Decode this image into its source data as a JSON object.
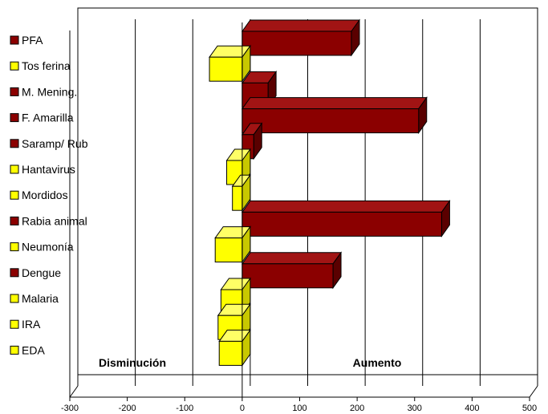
{
  "chart_data": {
    "type": "bar",
    "orientation": "horizontal",
    "style": "3d",
    "categories": [
      "PFA",
      "Tos ferina",
      "M. Mening.",
      "F. Amarilla",
      "Saramp/ Rub",
      "Hantavirus",
      "Mordidos",
      "Rabia animal",
      "Neumonía",
      "Dengue",
      "Malaria",
      "IRA",
      "EDA"
    ],
    "values": [
      190,
      -57,
      45,
      307,
      20,
      -27,
      -17,
      347,
      -47,
      158,
      -37,
      -42,
      -40
    ],
    "xlim": [
      -300,
      500
    ],
    "xticks": [
      -300,
      -200,
      -100,
      0,
      100,
      200,
      300,
      400,
      500
    ],
    "grid": true,
    "annotations": {
      "left": "Disminución",
      "right": "Aumento"
    },
    "colors": {
      "positive": "#8b0000",
      "positive_side": "#5a0000",
      "positive_top": "#a11414",
      "negative": "#ffff00",
      "negative_side": "#c8c800",
      "negative_top": "#ffff66"
    },
    "legend_placement": "left"
  }
}
